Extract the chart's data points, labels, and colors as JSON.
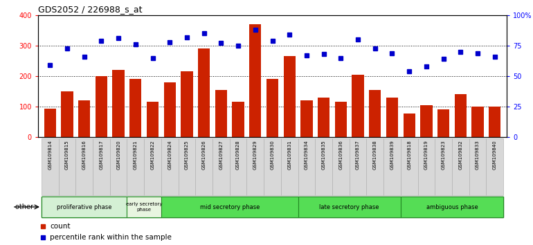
{
  "title": "GDS2052 / 226988_s_at",
  "samples": [
    "GSM109814",
    "GSM109815",
    "GSM109816",
    "GSM109817",
    "GSM109820",
    "GSM109821",
    "GSM109822",
    "GSM109824",
    "GSM109825",
    "GSM109826",
    "GSM109827",
    "GSM109828",
    "GSM109829",
    "GSM109830",
    "GSM109831",
    "GSM109834",
    "GSM109835",
    "GSM109836",
    "GSM109837",
    "GSM109838",
    "GSM109839",
    "GSM109818",
    "GSM109819",
    "GSM109823",
    "GSM109832",
    "GSM109833",
    "GSM109840"
  ],
  "counts": [
    93,
    150,
    120,
    200,
    220,
    190,
    115,
    180,
    215,
    290,
    155,
    115,
    370,
    190,
    265,
    120,
    130,
    115,
    205,
    155,
    130,
    78,
    105,
    90,
    140,
    100,
    100
  ],
  "percentiles": [
    59,
    73,
    66,
    79,
    81,
    76,
    65,
    78,
    82,
    85,
    77,
    75,
    88,
    79,
    84,
    67,
    68,
    65,
    80,
    73,
    69,
    54,
    58,
    64,
    70,
    69,
    66
  ],
  "phases": [
    {
      "label": "proliferative phase",
      "start": 0,
      "end": 5,
      "color": "#d4f0d4"
    },
    {
      "label": "early secretory\nphase",
      "start": 5,
      "end": 7,
      "color": "#e8f5e0"
    },
    {
      "label": "mid secretory phase",
      "start": 7,
      "end": 15,
      "color": "#66dd66"
    },
    {
      "label": "late secretory phase",
      "start": 15,
      "end": 21,
      "color": "#66dd66"
    },
    {
      "label": "ambiguous phase",
      "start": 21,
      "end": 27,
      "color": "#66dd66"
    }
  ],
  "bar_color": "#cc2200",
  "dot_color": "#0000cc",
  "left_ylim": [
    0,
    400
  ],
  "right_ylim": [
    0,
    100
  ],
  "left_yticks": [
    0,
    100,
    200,
    300,
    400
  ],
  "right_yticks": [
    0,
    25,
    50,
    75,
    100
  ],
  "right_yticklabels": [
    "0",
    "25",
    "50",
    "75",
    "100%"
  ],
  "gridlines": [
    100,
    200,
    300
  ]
}
